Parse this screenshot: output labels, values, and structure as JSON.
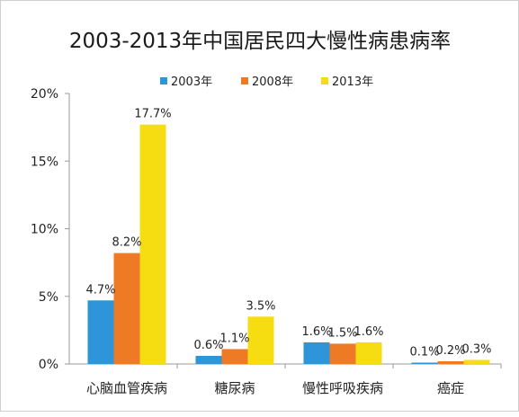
{
  "chart_data": {
    "type": "bar",
    "title": "2003-2013年中国居民四大慢性病患病率",
    "xlabel": "",
    "ylabel": "",
    "categories": [
      "心脑血管疾病",
      "糖尿病",
      "慢性呼吸疾病",
      "癌症"
    ],
    "series": [
      {
        "name": "2003年",
        "color": "#2e95d8",
        "values": [
          4.7,
          0.6,
          1.6,
          0.1
        ],
        "labels": [
          "4.7%",
          "0.6%",
          "1.6%",
          "0.1%"
        ]
      },
      {
        "name": "2008年",
        "color": "#ee7a26",
        "values": [
          8.2,
          1.1,
          1.5,
          0.2
        ],
        "labels": [
          "8.2%",
          "1.1%",
          "1.5%",
          "0.2%"
        ]
      },
      {
        "name": "2013年",
        "color": "#f5dd12",
        "values": [
          17.7,
          3.5,
          1.6,
          0.3
        ],
        "labels": [
          "17.7%",
          "3.5%",
          "1.6%",
          "0.3%"
        ]
      }
    ],
    "ylim": [
      0,
      20
    ],
    "yticks": [
      0,
      5,
      10,
      15,
      20
    ],
    "ytick_labels": [
      "0%",
      "5%",
      "10%",
      "15%",
      "20%"
    ],
    "legend_position": "top-right",
    "grid": false
  }
}
